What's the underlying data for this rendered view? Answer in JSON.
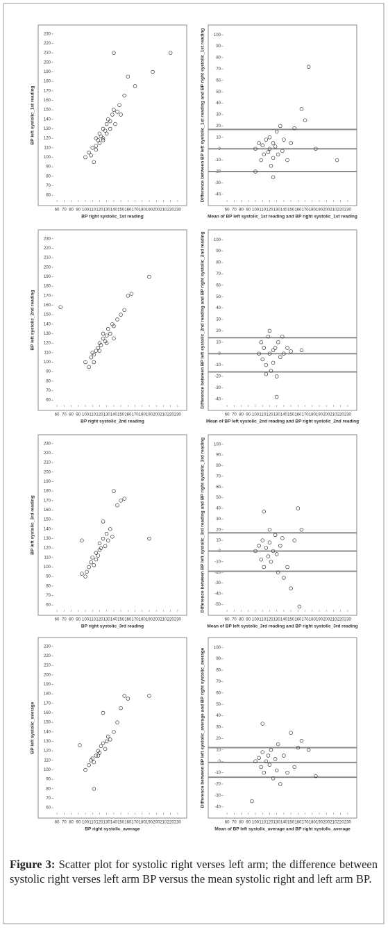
{
  "chart_data": [
    {
      "type": "scatter",
      "xlabel": "BP right systolic_1st reading",
      "ylabel": "BP left systolic_1st reading",
      "color": "#333333",
      "x": [
        100,
        105,
        108,
        110,
        112,
        115,
        115,
        118,
        120,
        120,
        122,
        125,
        125,
        128,
        130,
        130,
        132,
        135,
        138,
        140,
        142,
        145,
        148,
        150,
        155,
        160,
        170,
        140,
        195,
        220,
        115,
        125,
        135
      ],
      "y": [
        100,
        105,
        102,
        110,
        95,
        112,
        120,
        118,
        115,
        125,
        122,
        120,
        130,
        128,
        125,
        135,
        140,
        130,
        145,
        150,
        135,
        148,
        155,
        145,
        165,
        185,
        175,
        210,
        190,
        210,
        108,
        118,
        138
      ],
      "xlim": [
        55,
        235
      ],
      "ylim": [
        55,
        235
      ],
      "xticks": [
        60,
        70,
        80,
        90,
        100,
        110,
        120,
        130,
        140,
        150,
        160,
        170,
        180,
        190,
        200,
        210,
        220,
        230
      ],
      "yticks": [
        60,
        70,
        80,
        90,
        100,
        110,
        120,
        130,
        140,
        150,
        160,
        170,
        180,
        190,
        200,
        210,
        220,
        230
      ]
    },
    {
      "type": "scatter",
      "xlabel": "Mean of BP left systolic_1st reading and BP right systolic_1st reading",
      "ylabel": "Difference between BP left systolic_1st reading and BP right systolic_1st reading",
      "color": "#333333",
      "x": [
        100,
        105,
        108,
        110,
        112,
        115,
        118,
        120,
        120,
        122,
        125,
        125,
        128,
        130,
        132,
        135,
        138,
        140,
        145,
        150,
        155,
        165,
        170,
        175,
        185,
        215,
        100,
        125
      ],
      "y": [
        0,
        5,
        -10,
        3,
        -5,
        8,
        -3,
        0,
        10,
        -15,
        5,
        -8,
        2,
        15,
        -5,
        20,
        -2,
        8,
        -10,
        5,
        18,
        35,
        25,
        72,
        0,
        -10,
        -20,
        -25
      ],
      "hlines": [
        17,
        0,
        -20
      ],
      "xlim": [
        55,
        235
      ],
      "ylim": [
        -45,
        105
      ],
      "xticks": [
        60,
        70,
        80,
        90,
        100,
        110,
        120,
        130,
        140,
        150,
        160,
        170,
        180,
        190,
        200,
        210,
        220,
        230
      ],
      "yticks": [
        -40,
        -30,
        -20,
        -10,
        0,
        10,
        20,
        30,
        40,
        50,
        60,
        70,
        80,
        90,
        100
      ]
    },
    {
      "type": "scatter",
      "xlabel": "BP right systolic_2nd reading",
      "ylabel": "BP left systolic_2nd reading",
      "color": "#333333",
      "x": [
        65,
        100,
        105,
        108,
        110,
        112,
        115,
        118,
        120,
        122,
        125,
        125,
        128,
        130,
        132,
        135,
        138,
        140,
        145,
        150,
        155,
        160,
        165,
        190,
        112,
        120,
        130,
        140
      ],
      "y": [
        158,
        100,
        95,
        105,
        110,
        108,
        112,
        115,
        120,
        118,
        125,
        130,
        122,
        128,
        135,
        130,
        140,
        138,
        145,
        150,
        155,
        170,
        172,
        190,
        100,
        112,
        120,
        125
      ],
      "xlim": [
        55,
        235
      ],
      "ylim": [
        55,
        235
      ],
      "xticks": [
        60,
        70,
        80,
        90,
        100,
        110,
        120,
        130,
        140,
        150,
        160,
        170,
        180,
        190,
        200,
        210,
        220,
        230
      ],
      "yticks": [
        60,
        70,
        80,
        90,
        100,
        110,
        120,
        130,
        140,
        150,
        160,
        170,
        180,
        190,
        200,
        210,
        220,
        230
      ]
    },
    {
      "type": "scatter",
      "xlabel": "Mean of BP left systolic_2nd reading and BP right systolic_2nd reading",
      "ylabel": "Difference between BP left systolic_2nd reading and BP right systolic_2nd reading",
      "color": "#333333",
      "x": [
        105,
        108,
        110,
        112,
        115,
        118,
        120,
        120,
        122,
        125,
        125,
        128,
        130,
        132,
        135,
        138,
        140,
        145,
        150,
        165,
        130,
        115
      ],
      "y": [
        0,
        10,
        -5,
        5,
        -10,
        15,
        0,
        20,
        -15,
        3,
        -8,
        5,
        -20,
        10,
        -3,
        15,
        0,
        5,
        2,
        3,
        -38,
        -18
      ],
      "hlines": [
        14,
        0,
        -16
      ],
      "xlim": [
        55,
        235
      ],
      "ylim": [
        -45,
        105
      ],
      "xticks": [
        60,
        70,
        80,
        90,
        100,
        110,
        120,
        130,
        140,
        150,
        160,
        170,
        180,
        190,
        200,
        210,
        220,
        230
      ],
      "yticks": [
        -40,
        -30,
        -20,
        -10,
        0,
        10,
        20,
        30,
        40,
        50,
        60,
        70,
        80,
        90,
        100
      ]
    },
    {
      "type": "scatter",
      "xlabel": "BP right systolic_3rd reading",
      "ylabel": "BP left systolic_3rd reading",
      "color": "#333333",
      "x": [
        95,
        100,
        102,
        105,
        108,
        110,
        112,
        115,
        118,
        120,
        120,
        122,
        125,
        128,
        130,
        132,
        135,
        138,
        140,
        145,
        150,
        155,
        190,
        95,
        115,
        125
      ],
      "y": [
        128,
        90,
        95,
        100,
        105,
        110,
        102,
        115,
        112,
        118,
        125,
        120,
        130,
        122,
        135,
        128,
        140,
        132,
        180,
        165,
        170,
        172,
        130,
        93,
        108,
        148
      ],
      "xlim": [
        55,
        235
      ],
      "ylim": [
        55,
        235
      ],
      "xticks": [
        60,
        70,
        80,
        90,
        100,
        110,
        120,
        130,
        140,
        150,
        160,
        170,
        180,
        190,
        200,
        210,
        220,
        230
      ],
      "yticks": [
        60,
        70,
        80,
        90,
        100,
        110,
        120,
        130,
        140,
        150,
        160,
        170,
        180,
        190,
        200,
        210,
        220,
        230
      ]
    },
    {
      "type": "scatter",
      "xlabel": "Mean of BP left systolic_3rd reading and BP right systolic_3rd reading",
      "ylabel": "Difference between BP left systolic_3rd reading and BP right systolic_3rd reading",
      "color": "#333333",
      "x": [
        100,
        105,
        108,
        110,
        112,
        115,
        118,
        120,
        120,
        122,
        125,
        128,
        130,
        132,
        135,
        138,
        140,
        145,
        150,
        155,
        160,
        165,
        162,
        112
      ],
      "y": [
        0,
        5,
        -8,
        10,
        -15,
        3,
        -5,
        8,
        20,
        -10,
        0,
        15,
        -3,
        -20,
        5,
        12,
        -25,
        -15,
        -35,
        10,
        40,
        20,
        -52,
        37
      ],
      "hlines": [
        17,
        0,
        -19
      ],
      "xlim": [
        55,
        235
      ],
      "ylim": [
        -55,
        105
      ],
      "xticks": [
        60,
        70,
        80,
        90,
        100,
        110,
        120,
        130,
        140,
        150,
        160,
        170,
        180,
        190,
        200,
        210,
        220,
        230
      ],
      "yticks": [
        -50,
        -40,
        -30,
        -20,
        -10,
        0,
        10,
        20,
        30,
        40,
        50,
        60,
        70,
        80,
        90,
        100
      ]
    },
    {
      "type": "scatter",
      "xlabel": "BP right systolic_average",
      "ylabel": "BP left systolic_average",
      "color": "#333333",
      "x": [
        92,
        100,
        105,
        108,
        110,
        112,
        115,
        118,
        120,
        122,
        125,
        128,
        130,
        132,
        135,
        140,
        145,
        150,
        155,
        160,
        190,
        112,
        125,
        118
      ],
      "y": [
        126,
        100,
        105,
        110,
        112,
        108,
        115,
        120,
        118,
        125,
        128,
        122,
        130,
        135,
        132,
        140,
        150,
        165,
        178,
        175,
        178,
        80,
        160,
        115
      ],
      "xlim": [
        55,
        235
      ],
      "ylim": [
        55,
        235
      ],
      "xticks": [
        60,
        70,
        80,
        90,
        100,
        110,
        120,
        130,
        140,
        150,
        160,
        170,
        180,
        190,
        200,
        210,
        220,
        230
      ],
      "yticks": [
        60,
        70,
        80,
        90,
        100,
        110,
        120,
        130,
        140,
        150,
        160,
        170,
        180,
        190,
        200,
        210,
        220,
        230
      ]
    },
    {
      "type": "scatter",
      "xlabel": "Mean of BP left systolic_average and BP right systolic_average",
      "ylabel": "Difference between BP left systolic_average and BP right systolic_average",
      "color": "#333333",
      "x": [
        95,
        100,
        105,
        108,
        110,
        112,
        115,
        118,
        120,
        122,
        125,
        128,
        130,
        132,
        135,
        140,
        145,
        150,
        155,
        160,
        165,
        175,
        185,
        110
      ],
      "y": [
        -35,
        0,
        3,
        -5,
        8,
        -10,
        0,
        5,
        -3,
        10,
        -15,
        2,
        -8,
        15,
        -20,
        5,
        -10,
        25,
        -5,
        12,
        18,
        10,
        -13,
        33
      ],
      "hlines": [
        12,
        -1,
        -14
      ],
      "xlim": [
        55,
        235
      ],
      "ylim": [
        -45,
        105
      ],
      "xticks": [
        60,
        70,
        80,
        90,
        100,
        110,
        120,
        130,
        140,
        150,
        160,
        170,
        180,
        190,
        200,
        210,
        220,
        230
      ],
      "yticks": [
        -40,
        -30,
        -20,
        -10,
        0,
        10,
        20,
        30,
        40,
        50,
        60,
        70,
        80,
        90,
        100
      ]
    }
  ],
  "caption": {
    "label": "Figure 3:",
    "text": "Scatter plot for systolic right verses left arm; the difference between systolic right verses left arm BP versus the mean systolic right and left arm BP."
  }
}
